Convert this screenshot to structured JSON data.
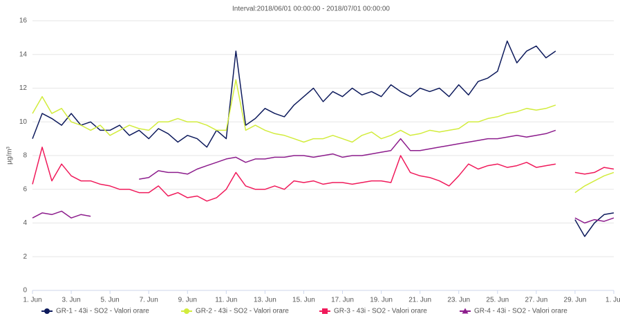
{
  "chart_data": {
    "type": "line",
    "title": "Interval:2018/06/01 00:00:00 - 2018/07/01 00:00:00",
    "y_label": "µg/m³",
    "x": [
      "2018-06-01T00:00",
      "2018-06-01T12:00",
      "2018-06-02T00:00",
      "2018-06-02T12:00",
      "2018-06-03T00:00",
      "2018-06-03T12:00",
      "2018-06-04T00:00",
      "2018-06-04T12:00",
      "2018-06-05T00:00",
      "2018-06-05T12:00",
      "2018-06-06T00:00",
      "2018-06-06T12:00",
      "2018-06-07T00:00",
      "2018-06-07T12:00",
      "2018-06-08T00:00",
      "2018-06-08T12:00",
      "2018-06-09T00:00",
      "2018-06-09T12:00",
      "2018-06-10T00:00",
      "2018-06-10T12:00",
      "2018-06-11T00:00",
      "2018-06-11T12:00",
      "2018-06-12T00:00",
      "2018-06-12T12:00",
      "2018-06-13T00:00",
      "2018-06-13T12:00",
      "2018-06-14T00:00",
      "2018-06-14T12:00",
      "2018-06-15T00:00",
      "2018-06-15T12:00",
      "2018-06-16T00:00",
      "2018-06-16T12:00",
      "2018-06-17T00:00",
      "2018-06-17T12:00",
      "2018-06-18T00:00",
      "2018-06-18T12:00",
      "2018-06-19T00:00",
      "2018-06-19T12:00",
      "2018-06-20T00:00",
      "2018-06-20T12:00",
      "2018-06-21T00:00",
      "2018-06-21T12:00",
      "2018-06-22T00:00",
      "2018-06-22T12:00",
      "2018-06-23T00:00",
      "2018-06-23T12:00",
      "2018-06-24T00:00",
      "2018-06-24T12:00",
      "2018-06-25T00:00",
      "2018-06-25T12:00",
      "2018-06-26T00:00",
      "2018-06-26T12:00",
      "2018-06-27T00:00",
      "2018-06-27T12:00",
      "2018-06-28T00:00",
      "2018-06-28T12:00",
      "2018-06-29T00:00",
      "2018-06-29T12:00",
      "2018-06-30T00:00",
      "2018-06-30T12:00",
      "2018-07-01T00:00"
    ],
    "xlim": [
      "2018-06-01T00:00",
      "2018-07-01T00:00"
    ],
    "xticks": [
      {
        "value": "2018-06-01T00:00",
        "label": "1. Jun"
      },
      {
        "value": "2018-06-03T00:00",
        "label": "3. Jun"
      },
      {
        "value": "2018-06-05T00:00",
        "label": "5. Jun"
      },
      {
        "value": "2018-06-07T00:00",
        "label": "7. Jun"
      },
      {
        "value": "2018-06-09T00:00",
        "label": "9. Jun"
      },
      {
        "value": "2018-06-11T00:00",
        "label": "11. Jun"
      },
      {
        "value": "2018-06-13T00:00",
        "label": "13. Jun"
      },
      {
        "value": "2018-06-15T00:00",
        "label": "15. Jun"
      },
      {
        "value": "2018-06-17T00:00",
        "label": "17. Jun"
      },
      {
        "value": "2018-06-19T00:00",
        "label": "19. Jun"
      },
      {
        "value": "2018-06-21T00:00",
        "label": "21. Jun"
      },
      {
        "value": "2018-06-23T00:00",
        "label": "23. Jun"
      },
      {
        "value": "2018-06-25T00:00",
        "label": "25. Jun"
      },
      {
        "value": "2018-06-27T00:00",
        "label": "27. Jun"
      },
      {
        "value": "2018-06-29T00:00",
        "label": "29. Jun"
      },
      {
        "value": "2018-07-01T00:00",
        "label": "1. Jul"
      }
    ],
    "ylim": [
      0,
      16
    ],
    "yticks": [
      0,
      2,
      4,
      6,
      8,
      10,
      12,
      14,
      16
    ],
    "grid": true,
    "series": [
      {
        "name": "GR-1 - 43i - SO2 - Valori orare",
        "color": "#0d1a5c",
        "marker": "circle",
        "values": [
          9,
          10.5,
          10.2,
          9.8,
          10.5,
          9.8,
          10,
          9.5,
          9.5,
          9.8,
          9.2,
          9.5,
          9,
          9.6,
          9.3,
          8.8,
          9.2,
          9,
          8.5,
          9.5,
          9,
          14.2,
          9.8,
          10.2,
          10.8,
          10.5,
          10.3,
          11,
          11.5,
          12,
          11.2,
          11.8,
          11.5,
          12,
          11.6,
          11.8,
          11.5,
          12.2,
          11.8,
          11.5,
          12,
          11.8,
          12,
          11.5,
          12.2,
          11.6,
          12.4,
          12.6,
          13,
          14.8,
          13.5,
          14.2,
          14.5,
          13.8,
          14.2,
          null,
          4.2,
          3.2,
          4,
          4.5,
          4.6
        ]
      },
      {
        "name": "GR-2 - 43i - SO2 - Valori orare",
        "color": "#d2ec3c",
        "marker": "circle",
        "values": [
          10.5,
          11.5,
          10.5,
          10.8,
          10,
          9.8,
          9.5,
          9.8,
          9.2,
          9.5,
          9.8,
          9.6,
          9.5,
          10,
          10,
          10.2,
          10,
          10,
          9.8,
          9.5,
          9.5,
          12.5,
          9.5,
          9.8,
          9.5,
          9.3,
          9.2,
          9,
          8.8,
          9,
          9,
          9.2,
          9,
          8.8,
          9.2,
          9.4,
          9,
          9.2,
          9.5,
          9.2,
          9.3,
          9.5,
          9.4,
          9.5,
          9.6,
          10,
          10,
          10.2,
          10.3,
          10.5,
          10.6,
          10.8,
          10.7,
          10.8,
          11,
          null,
          5.8,
          6.2,
          6.5,
          6.8,
          7
        ]
      },
      {
        "name": "GR-3 - 43i - SO2 - Valori orare",
        "color": "#f0195a",
        "marker": "square",
        "values": [
          6.3,
          8.5,
          6.5,
          7.5,
          6.8,
          6.5,
          6.5,
          6.3,
          6.2,
          6,
          6,
          5.8,
          5.8,
          6.2,
          5.6,
          5.8,
          5.5,
          5.6,
          5.3,
          5.5,
          6,
          7,
          6.2,
          6,
          6,
          6.2,
          6,
          6.5,
          6.4,
          6.5,
          6.3,
          6.4,
          6.4,
          6.3,
          6.4,
          6.5,
          6.5,
          6.4,
          8,
          7,
          6.8,
          6.7,
          6.5,
          6.2,
          6.8,
          7.5,
          7.2,
          7.4,
          7.5,
          7.3,
          7.4,
          7.6,
          7.3,
          7.4,
          7.5,
          null,
          7,
          6.9,
          7,
          7.3,
          7.2
        ]
      },
      {
        "name": "GR-4 - 43i - SO2 - Valori orare",
        "color": "#8c1c8c",
        "marker": "triangle",
        "values": [
          4.3,
          4.6,
          4.5,
          4.7,
          4.3,
          4.5,
          4.4,
          null,
          null,
          null,
          null,
          6.6,
          6.7,
          7.1,
          7,
          7,
          6.9,
          7.2,
          7.4,
          7.6,
          7.8,
          7.9,
          7.6,
          7.8,
          7.8,
          7.9,
          7.9,
          8,
          8,
          7.9,
          8,
          8.1,
          7.9,
          8,
          8,
          8.1,
          8.2,
          8.3,
          9,
          8.3,
          8.3,
          8.4,
          8.5,
          8.6,
          8.7,
          8.8,
          8.9,
          9,
          9,
          9.1,
          9.2,
          9.1,
          9.2,
          9.3,
          9.5,
          null,
          4.3,
          4,
          4.2,
          4.1,
          4.3
        ]
      }
    ]
  }
}
